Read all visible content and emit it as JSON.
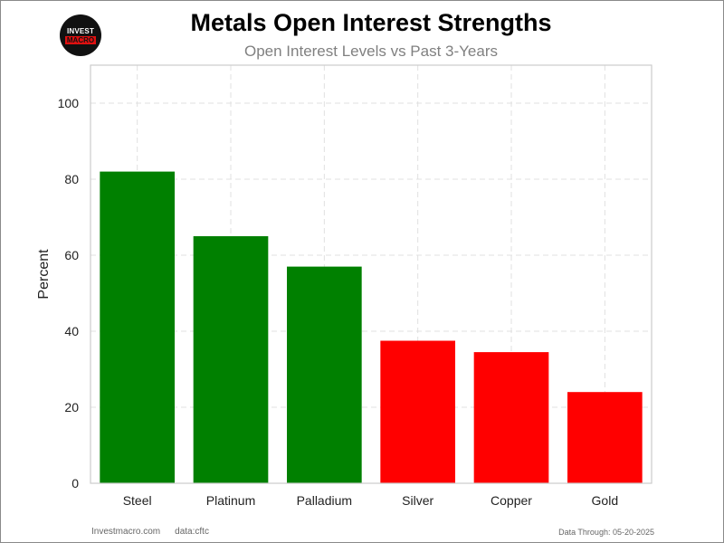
{
  "header": {
    "title": "Metals Open Interest Strengths",
    "subtitle": "Open Interest Levels vs Past 3-Years"
  },
  "logo": {
    "line1": "INVEST",
    "line2": "MACRO"
  },
  "footer": {
    "site": "Investmacro.com",
    "source": "data:cftc",
    "data_through": "Data Through: 05-20-2025"
  },
  "colors": {
    "positive": "#008000",
    "negative": "#ff0000",
    "grid": "#e0e0e0",
    "axes": "#cccccc"
  },
  "chart_data": {
    "type": "bar",
    "title": "Metals Open Interest Strengths",
    "subtitle": "Open Interest Levels vs Past 3-Years",
    "xlabel": "",
    "ylabel": "Percent",
    "categories": [
      "Steel",
      "Platinum",
      "Palladium",
      "Silver",
      "Copper",
      "Gold"
    ],
    "values": [
      82,
      65,
      57,
      37.5,
      34.5,
      24
    ],
    "bar_colors": [
      "#008000",
      "#008000",
      "#008000",
      "#ff0000",
      "#ff0000",
      "#ff0000"
    ],
    "ylim": [
      0,
      110
    ],
    "yticks": [
      0,
      20,
      40,
      60,
      80,
      100
    ],
    "grid": true
  }
}
